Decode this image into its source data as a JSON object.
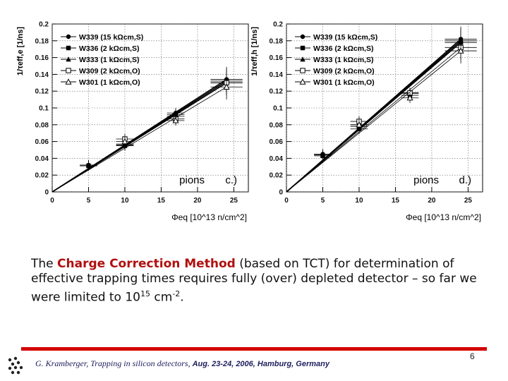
{
  "chart_data": [
    {
      "type": "scatter",
      "panel_label": "c.)",
      "annotation": "pions",
      "ylabel": "1/τeff,e [1/ns]",
      "xlabel": "Φeq [10^13 n/cm^2]",
      "xlim": [
        0,
        27
      ],
      "ylim": [
        0,
        0.2
      ],
      "x_ticks": [
        0,
        5,
        10,
        15,
        20,
        25
      ],
      "y_ticks": [
        0,
        0.02,
        0.04,
        0.06,
        0.08,
        0.1,
        0.12,
        0.14,
        0.16,
        0.18,
        0.2
      ],
      "legend_position": "top-left",
      "grid": true,
      "series": [
        {
          "name": "W339 (15 kΩcm,S)",
          "marker": "filled-circle",
          "x": [
            0,
            5,
            10,
            17,
            24
          ],
          "y": [
            0,
            0.032,
            0.057,
            0.094,
            0.134
          ]
        },
        {
          "name": "W336 (2 kΩcm,S)",
          "marker": "filled-square",
          "x": [
            0,
            5,
            10,
            17,
            24
          ],
          "y": [
            0,
            0.031,
            0.055,
            0.092,
            0.132
          ]
        },
        {
          "name": "W333 (1 kΩcm,S)",
          "marker": "filled-triangle",
          "x": [
            0,
            5,
            10,
            17,
            24
          ],
          "y": [
            0,
            0.032,
            0.056,
            0.09,
            0.13
          ]
        },
        {
          "name": "W309 (2 kΩcm,O)",
          "marker": "open-square",
          "x": [
            0,
            10,
            17,
            24
          ],
          "y": [
            0,
            0.063,
            0.087,
            0.13
          ]
        },
        {
          "name": "W301 (1 kΩcm,O)",
          "marker": "open-triangle",
          "x": [
            0,
            10,
            17,
            24
          ],
          "y": [
            0,
            0.06,
            0.085,
            0.125
          ]
        }
      ]
    },
    {
      "type": "scatter",
      "panel_label": "d.)",
      "annotation": "pions",
      "ylabel": "1/τeff,h [1/ns]",
      "xlabel": "Φeq [10^13 n/cm^2]",
      "xlim": [
        0,
        27
      ],
      "ylim": [
        0,
        0.2
      ],
      "x_ticks": [
        0,
        5,
        10,
        15,
        20,
        25
      ],
      "y_ticks": [
        0,
        0.02,
        0.04,
        0.06,
        0.08,
        0.1,
        0.12,
        0.14,
        0.16,
        0.18,
        0.2
      ],
      "legend_position": "top-left",
      "grid": true,
      "series": [
        {
          "name": "W339 (15 kΩcm,S)",
          "marker": "filled-circle",
          "x": [
            0,
            5,
            10,
            17,
            24
          ],
          "y": [
            0,
            0.045,
            0.08,
            0.118,
            0.182
          ]
        },
        {
          "name": "W336 (2 kΩcm,S)",
          "marker": "filled-square",
          "x": [
            0,
            5,
            10,
            17,
            24
          ],
          "y": [
            0,
            0.043,
            0.075,
            0.115,
            0.178
          ]
        },
        {
          "name": "W333 (1 kΩcm,S)",
          "marker": "filled-triangle",
          "x": [
            0,
            5,
            10,
            17,
            24
          ],
          "y": [
            0,
            0.044,
            0.078,
            0.117,
            0.18
          ]
        },
        {
          "name": "W309 (2 kΩcm,O)",
          "marker": "open-square",
          "x": [
            0,
            10,
            17,
            24
          ],
          "y": [
            0,
            0.084,
            0.118,
            0.172
          ]
        },
        {
          "name": "W301 (1 kΩcm,O)",
          "marker": "open-triangle",
          "x": [
            0,
            10,
            17,
            24
          ],
          "y": [
            0,
            0.08,
            0.112,
            0.168
          ]
        }
      ]
    }
  ],
  "caption": {
    "pre": "The ",
    "highlight": "Charge Correction Method",
    "mid": "  (based on TCT) for determination of effective trapping times requires fully (over) depleted detector – so far we were limited to 10",
    "exp1": "15",
    "unit": " cm",
    "exp2": "-2",
    "end": "."
  },
  "footer": {
    "author": "G. Kramberger, ",
    "title": "Trapping in silicon detectors, ",
    "event": "Aug.  23-24, 2006, Hamburg, Germany",
    "page": "6"
  }
}
